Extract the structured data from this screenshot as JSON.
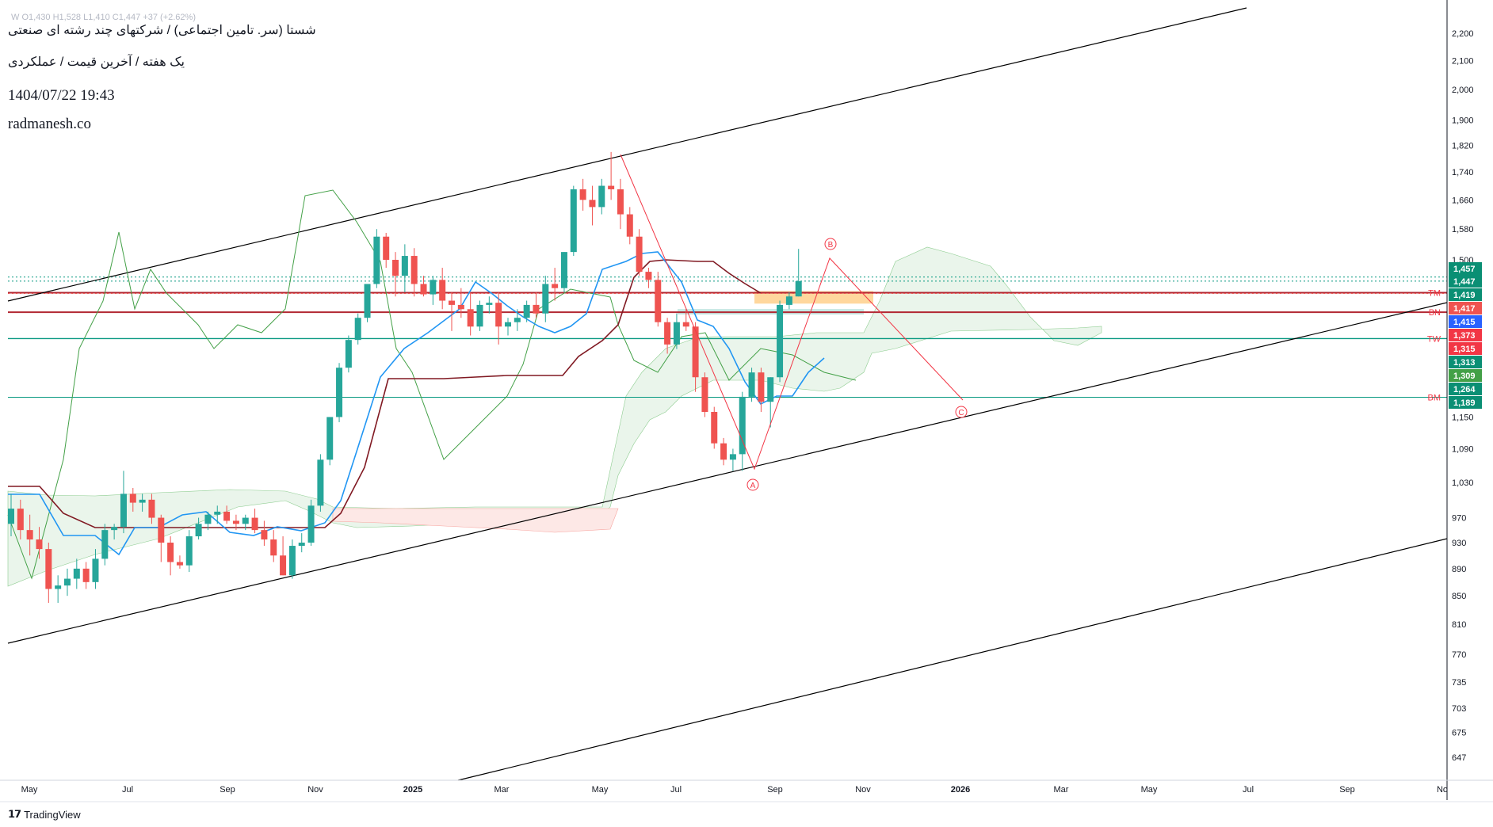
{
  "header": {
    "title": "شستا (سر. تامین اجتماعی) / شرکتهای چند رشته ای صنعتی",
    "subtitle": "یک هفته / آخرین قیمت / عملکردی",
    "datetime": "1404/07/22 19:43",
    "website": "radmanesh.co",
    "ohlc": "W  O1,430  H1,528  L1,410  C1,447  +37 (+2.62%)"
  },
  "footer": {
    "brand": "TradingView",
    "brand_icon": "tradingview-logo-icon"
  },
  "colors": {
    "up": "#26a69a",
    "down": "#ef5350",
    "tenkan": "#2196f3",
    "kijun": "#801922",
    "lagging": "#43a047",
    "cloud_up": "#e8f5e9",
    "cloud_down": "#fde8e6",
    "channel": "#000000",
    "pattern": "#f23645",
    "zone": "#ffb74d"
  },
  "chart_data": {
    "type": "candlestick",
    "interval": "1W",
    "price_scale": "log",
    "y_ticks": [
      2200,
      2100,
      2000,
      1900,
      1820,
      1740,
      1660,
      1580,
      1500,
      1150,
      1090,
      1030,
      970,
      930,
      890,
      850,
      810,
      770,
      735,
      703,
      675,
      647
    ],
    "x_ticks": [
      "May",
      "Jul",
      "Sep",
      "Nov",
      "2025",
      "Mar",
      "May",
      "Jul",
      "Sep",
      "Nov",
      "2026",
      "Mar",
      "May",
      "Jul",
      "Sep",
      "No"
    ],
    "price_labels": [
      {
        "value": 1457,
        "text": "1,457",
        "color": "#0a8f74"
      },
      {
        "value": 1447,
        "text": "1,447",
        "color": "#0a8f74"
      },
      {
        "value": 1419,
        "text": "1,419",
        "color": "#0a8f74"
      },
      {
        "value": 1417,
        "text": "1,417",
        "color": "#ef5350"
      },
      {
        "value": 1415,
        "text": "1,415",
        "color": "#2962ff"
      },
      {
        "value": 1373,
        "text": "1,373",
        "color": "#f23645"
      },
      {
        "value": 1315,
        "text": "1,315",
        "color": "#f23645"
      },
      {
        "value": 1313,
        "text": "1,313",
        "color": "#0a8f74"
      },
      {
        "value": 1309,
        "text": "1,309",
        "color": "#43a047"
      },
      {
        "value": 1264,
        "text": "1,264",
        "color": "#0a8f74"
      },
      {
        "value": 1189,
        "text": "1,189",
        "color": "#0a8f74"
      }
    ],
    "levels": [
      {
        "label": "TW",
        "value": 1313,
        "color": "#089981"
      },
      {
        "label": "BM",
        "value": 1189,
        "color": "#089981"
      },
      {
        "label": "TM",
        "value": 1419,
        "color": "#b22833"
      },
      {
        "label": "BN",
        "value": 1373,
        "color": "#b22833"
      }
    ],
    "wave_labels": [
      "A",
      "B",
      "C"
    ]
  }
}
